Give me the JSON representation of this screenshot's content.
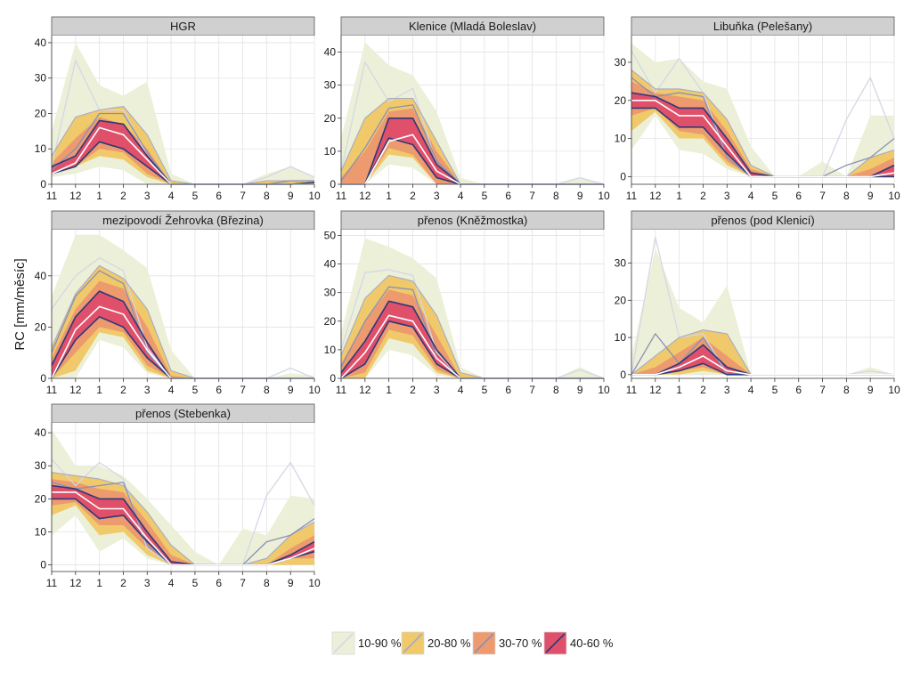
{
  "colors": {
    "band_10_90": "#ecf0d8",
    "band_20_80": "#f0c96a",
    "band_30_70": "#ec9a6e",
    "band_40_60": "#e0506a",
    "median": "#ffffff",
    "q40_60_line": "#2b3a78",
    "q30_70_line": "#8a8fb8",
    "q20_80_line": "#a6aac8",
    "q10_90_line": "#d4d7e6",
    "panel_bg": "#ffffff",
    "grid": "#e3e3e3",
    "strip_bg": "#d0d0d0"
  },
  "chart_data": {
    "type": "area",
    "ylabel": "RC [mm/měsíc]",
    "xlabel": "",
    "x_ticks": [
      "11",
      "12",
      "1",
      "2",
      "3",
      "4",
      "5",
      "6",
      "7",
      "8",
      "9",
      "10"
    ],
    "legend": {
      "placement": "bottom",
      "entries": [
        "10-90 %",
        "20-80 %",
        "30-70 %",
        "40-60 %"
      ]
    },
    "panels": [
      {
        "title": "HGR",
        "ylim": [
          0,
          42
        ],
        "yticks": [
          0,
          10,
          20,
          30,
          40
        ],
        "q10": [
          2,
          3,
          5,
          4,
          0,
          0,
          0,
          0,
          0,
          0,
          0,
          0
        ],
        "q90": [
          15,
          40,
          28,
          25,
          29,
          3,
          0,
          0,
          0,
          3,
          5,
          2
        ],
        "q20": [
          3,
          5,
          8,
          7,
          2,
          0,
          0,
          0,
          0,
          0,
          0,
          0
        ],
        "q80": [
          8,
          19,
          21,
          22,
          14,
          1,
          0,
          0,
          0,
          1,
          1,
          1
        ],
        "q30": [
          3,
          5,
          10,
          9,
          3,
          0,
          0,
          0,
          0,
          0,
          0,
          0
        ],
        "q70": [
          6,
          13,
          19,
          17,
          10,
          0,
          0,
          0,
          0,
          0,
          0,
          0
        ],
        "q40": [
          3,
          5,
          12,
          10,
          5,
          0,
          0,
          0,
          0,
          0,
          0,
          0.5
        ],
        "q60": [
          5,
          8,
          18,
          17,
          8,
          0,
          0,
          0,
          0,
          0,
          0,
          0.5
        ],
        "median": [
          3,
          6,
          16,
          14,
          7,
          0,
          0,
          0,
          0,
          0,
          0,
          0
        ],
        "q10_line": [
          5,
          35,
          21,
          21,
          8,
          0,
          0,
          0,
          0,
          2,
          5,
          2
        ],
        "q30_line": [
          4,
          10,
          20,
          20,
          9,
          0,
          0,
          0,
          0,
          0,
          1,
          1
        ]
      },
      {
        "title": "Klenice (Mladá Boleslav)",
        "ylim": [
          0,
          45
        ],
        "yticks": [
          0,
          10,
          20,
          30,
          40
        ],
        "q10": [
          0,
          0,
          6,
          5,
          0,
          0,
          0,
          0,
          0,
          0,
          0,
          0
        ],
        "q90": [
          14,
          43,
          36,
          33,
          22,
          2,
          0,
          0,
          0,
          0,
          2,
          0
        ],
        "q20": [
          0,
          0,
          9,
          8,
          0,
          0,
          0,
          0,
          0,
          0,
          0,
          0
        ],
        "q80": [
          4,
          20,
          26,
          26,
          13,
          0,
          0,
          0,
          0,
          0,
          0,
          0
        ],
        "q30": [
          0,
          0,
          11,
          9,
          0,
          0,
          0,
          0,
          0,
          0,
          0,
          0
        ],
        "q70": [
          2,
          10,
          22,
          23,
          10,
          0,
          0,
          0,
          0,
          0,
          0,
          0
        ],
        "q40": [
          0,
          0,
          14,
          12,
          2,
          0,
          0,
          0,
          0,
          0,
          0,
          0
        ],
        "q60": [
          0,
          0,
          20,
          20,
          6,
          0,
          0,
          0,
          0,
          0,
          0,
          0
        ],
        "median": [
          0,
          0,
          13,
          15,
          4,
          0,
          0,
          0,
          0,
          0,
          0,
          0
        ],
        "q10_line": [
          4,
          37,
          25,
          29,
          6,
          0,
          0,
          0,
          0,
          0,
          2,
          0
        ],
        "q30_line": [
          1,
          11,
          23,
          24,
          7,
          0,
          0,
          0,
          0,
          0,
          0,
          0
        ]
      },
      {
        "title": "Libuňka (Pelešany)",
        "ylim": [
          -2,
          37
        ],
        "yticks": [
          0,
          10,
          20,
          30
        ],
        "q10": [
          7,
          16,
          7,
          6,
          2,
          0,
          0,
          0,
          0,
          0,
          0,
          0
        ],
        "q90": [
          35,
          30,
          31,
          25,
          23,
          8,
          0,
          0,
          4,
          0,
          16,
          16
        ],
        "q20": [
          12,
          17,
          10,
          10,
          3,
          0,
          0,
          0,
          0,
          0,
          0,
          0
        ],
        "q80": [
          28,
          23,
          23,
          22,
          15,
          3,
          0,
          0,
          0,
          0,
          5,
          7
        ],
        "q30": [
          16,
          18,
          12,
          11,
          4,
          0,
          0,
          0,
          0,
          0,
          0,
          0
        ],
        "q70": [
          25,
          22,
          21,
          20,
          12,
          2,
          0,
          0,
          0,
          0,
          2,
          5
        ],
        "q40": [
          18,
          18,
          13,
          13,
          6,
          0,
          0,
          0,
          0,
          0,
          0,
          0
        ],
        "q60": [
          22,
          21,
          18,
          18,
          10,
          1,
          0,
          0,
          0,
          0,
          0,
          3
        ],
        "median": [
          20,
          20,
          16,
          16,
          8,
          0,
          0,
          0,
          0,
          0,
          0,
          1
        ],
        "q10_line": [
          33,
          22,
          31,
          22,
          5,
          0,
          0,
          0,
          0,
          15,
          26,
          10
        ],
        "q30_line": [
          26,
          21,
          22,
          21,
          5,
          0,
          0,
          0,
          0,
          3,
          5,
          10
        ]
      },
      {
        "title": "mezipovodí Žehrovka (Březina)",
        "ylim": [
          0,
          58
        ],
        "yticks": [
          0,
          20,
          40
        ],
        "q10": [
          0,
          0,
          15,
          12,
          2,
          0,
          0,
          0,
          0,
          0,
          0,
          0
        ],
        "q90": [
          32,
          56,
          56,
          50,
          43,
          11,
          0,
          0,
          0,
          0,
          2,
          1
        ],
        "q20": [
          0,
          3,
          18,
          16,
          3,
          0,
          0,
          0,
          0,
          0,
          0,
          0
        ],
        "q80": [
          12,
          33,
          44,
          39,
          27,
          3,
          0,
          0,
          0,
          0,
          0,
          0
        ],
        "q30": [
          0,
          10,
          20,
          18,
          5,
          0,
          0,
          0,
          0,
          0,
          0,
          0
        ],
        "q70": [
          8,
          27,
          38,
          35,
          20,
          1,
          0,
          0,
          0,
          0,
          0,
          0
        ],
        "q40": [
          0,
          15,
          24,
          20,
          8,
          0,
          0,
          0,
          0,
          0,
          0,
          0
        ],
        "q60": [
          5,
          24,
          34,
          30,
          14,
          0,
          0,
          0,
          0,
          0,
          0,
          0
        ],
        "median": [
          0,
          19,
          28,
          25,
          11,
          0,
          0,
          0,
          0,
          0,
          0,
          0
        ],
        "q10_line": [
          27,
          40,
          47,
          42,
          12,
          0,
          0,
          0,
          0,
          0,
          4,
          0
        ],
        "q30_line": [
          10,
          32,
          42,
          37,
          10,
          0,
          0,
          0,
          0,
          0,
          0,
          0
        ]
      },
      {
        "title": "přenos (Kněžmostka)",
        "ylim": [
          0,
          52
        ],
        "yticks": [
          0,
          10,
          20,
          30,
          40,
          50
        ],
        "q10": [
          0,
          0,
          10,
          8,
          1,
          0,
          0,
          0,
          0,
          0,
          0,
          0
        ],
        "q90": [
          16,
          49,
          46,
          42,
          35,
          4,
          0,
          0,
          0,
          0,
          4,
          0
        ],
        "q20": [
          0,
          0,
          14,
          12,
          2,
          0,
          0,
          0,
          0,
          0,
          0,
          0
        ],
        "q80": [
          8,
          28,
          36,
          34,
          22,
          2,
          0,
          0,
          0,
          0,
          0,
          0
        ],
        "q30": [
          0,
          2,
          17,
          15,
          3,
          0,
          0,
          0,
          0,
          0,
          0,
          0
        ],
        "q70": [
          5,
          20,
          31,
          29,
          15,
          0,
          0,
          0,
          0,
          0,
          0,
          0
        ],
        "q40": [
          0,
          5,
          20,
          18,
          5,
          0,
          0,
          0,
          0,
          0,
          0,
          0
        ],
        "q60": [
          2,
          13,
          27,
          25,
          10,
          0,
          0,
          0,
          0,
          0,
          0,
          0
        ],
        "median": [
          0,
          9,
          22,
          20,
          7,
          0,
          0,
          0,
          0,
          0,
          0,
          0
        ],
        "q10_line": [
          10,
          37,
          38,
          36,
          9,
          0,
          0,
          0,
          0,
          0,
          3,
          0
        ],
        "q30_line": [
          4,
          20,
          32,
          31,
          7,
          0,
          0,
          0,
          0,
          0,
          0,
          0
        ]
      },
      {
        "title": "přenos (pod Klenicí)",
        "ylim": [
          -1,
          39
        ],
        "yticks": [
          0,
          10,
          20,
          30
        ],
        "q10": [
          0,
          0,
          0,
          0,
          0,
          0,
          0,
          0,
          0,
          0,
          0,
          0
        ],
        "q90": [
          5,
          34,
          18,
          14,
          24,
          0,
          0,
          0,
          0,
          0,
          2,
          0
        ],
        "q20": [
          0,
          0,
          0,
          1,
          0,
          0,
          0,
          0,
          0,
          0,
          0,
          0
        ],
        "q80": [
          0,
          5,
          10,
          12,
          11,
          0,
          0,
          0,
          0,
          0,
          0,
          0
        ],
        "q30": [
          0,
          0,
          1,
          2,
          0,
          0,
          0,
          0,
          0,
          0,
          0,
          0
        ],
        "q70": [
          0,
          2,
          6,
          10,
          5,
          0,
          0,
          0,
          0,
          0,
          0,
          0
        ],
        "q40": [
          0,
          0,
          1,
          3,
          0,
          0,
          0,
          0,
          0,
          0,
          0,
          0
        ],
        "q60": [
          0,
          0,
          3,
          8,
          2,
          0,
          0,
          0,
          0,
          0,
          0,
          0
        ],
        "median": [
          0,
          0,
          2,
          5,
          1,
          0,
          0,
          0,
          0,
          0,
          0,
          0
        ],
        "q10_line": [
          0,
          37,
          10,
          11,
          0,
          0,
          0,
          0,
          0,
          0,
          1,
          0
        ],
        "q30_line": [
          0,
          11,
          3,
          10,
          0,
          0,
          0,
          0,
          0,
          0,
          0,
          0
        ]
      },
      {
        "title": "přenos (Stebenka)",
        "ylim": [
          -2,
          43
        ],
        "yticks": [
          0,
          10,
          20,
          30,
          40
        ],
        "q10": [
          9,
          15,
          4,
          8,
          2,
          0,
          0,
          0,
          0,
          0,
          0,
          0
        ],
        "q90": [
          41,
          30,
          30,
          27,
          20,
          12,
          4,
          0,
          11,
          9,
          21,
          20
        ],
        "q20": [
          15,
          18,
          9,
          10,
          3,
          0,
          0,
          0,
          0,
          0,
          0,
          0
        ],
        "q80": [
          28,
          27,
          26,
          24,
          16,
          6,
          0,
          0,
          0,
          2,
          9,
          13
        ],
        "q30": [
          18,
          19,
          12,
          12,
          5,
          0,
          0,
          0,
          0,
          0,
          2,
          2
        ],
        "q70": [
          26,
          25,
          23,
          22,
          13,
          3,
          0,
          0,
          0,
          0,
          5,
          9
        ],
        "q40": [
          20,
          20,
          14,
          15,
          7,
          0,
          0,
          0,
          0,
          0,
          2,
          4
        ],
        "q60": [
          24,
          23,
          20,
          20,
          10,
          1,
          0,
          0,
          0,
          0,
          3,
          7
        ],
        "median": [
          22,
          22,
          17,
          17,
          8,
          0,
          0,
          0,
          0,
          0,
          2,
          5
        ],
        "q10_line": [
          32,
          24,
          31,
          26,
          5,
          0,
          0,
          0,
          0,
          21,
          31,
          18
        ],
        "q30_line": [
          25,
          23,
          24,
          25,
          6,
          0,
          0,
          0,
          0,
          7,
          9,
          14
        ]
      }
    ]
  }
}
